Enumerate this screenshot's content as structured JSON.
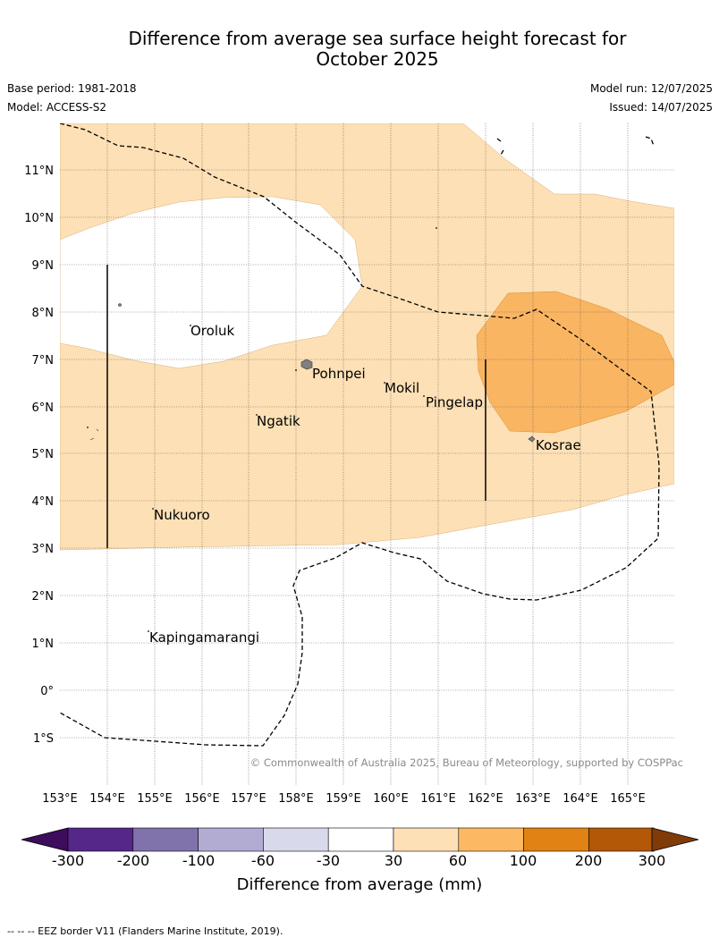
{
  "header": {
    "title_line1": "Difference from average sea surface height forecast for",
    "title_line2": "October 2025",
    "base_period": "Base period: 1981-2018",
    "model": "Model: ACCESS-S2",
    "model_run": "Model run: 12/07/2025",
    "issued": "Issued: 14/07/2025"
  },
  "map": {
    "lat_labels": [
      "11°N",
      "10°N",
      "9°N",
      "8°N",
      "7°N",
      "6°N",
      "5°N",
      "4°N",
      "3°N",
      "2°N",
      "1°N",
      "0°",
      "1°S"
    ],
    "lon_labels": [
      "153°E",
      "154°E",
      "155°E",
      "156°E",
      "157°E",
      "158°E",
      "159°E",
      "160°E",
      "161°E",
      "162°E",
      "163°E",
      "164°E",
      "165°E"
    ],
    "places": [
      "Oroluk",
      "Pohnpei",
      "Mokil",
      "Pingelap",
      "Ngatik",
      "Kosrae",
      "Nukuoro",
      "Kapingamarangi"
    ],
    "copyright": "© Commonwealth of Australia 2025, Bureau of Meteorology, supported by COSPPac",
    "colors": {
      "band_30_60": "#fde0b5",
      "band_60_100": "#f9b562",
      "land": "#808080"
    }
  },
  "colorbar": {
    "ticks": [
      "-300",
      "-200",
      "-100",
      "-60",
      "-30",
      "30",
      "60",
      "100",
      "200",
      "300"
    ],
    "colors": [
      "#3d0c5c",
      "#542788",
      "#8073ac",
      "#b2abd2",
      "#d8daeb",
      "#ffffff",
      "#fee0b6",
      "#fdb863",
      "#e08214",
      "#b35806",
      "#7f3b08"
    ],
    "label": "Difference from average (mm)"
  },
  "footer": {
    "eez_note": "--  --  -- EEZ border V11 (Flanders Marine Institute, 2019)."
  }
}
